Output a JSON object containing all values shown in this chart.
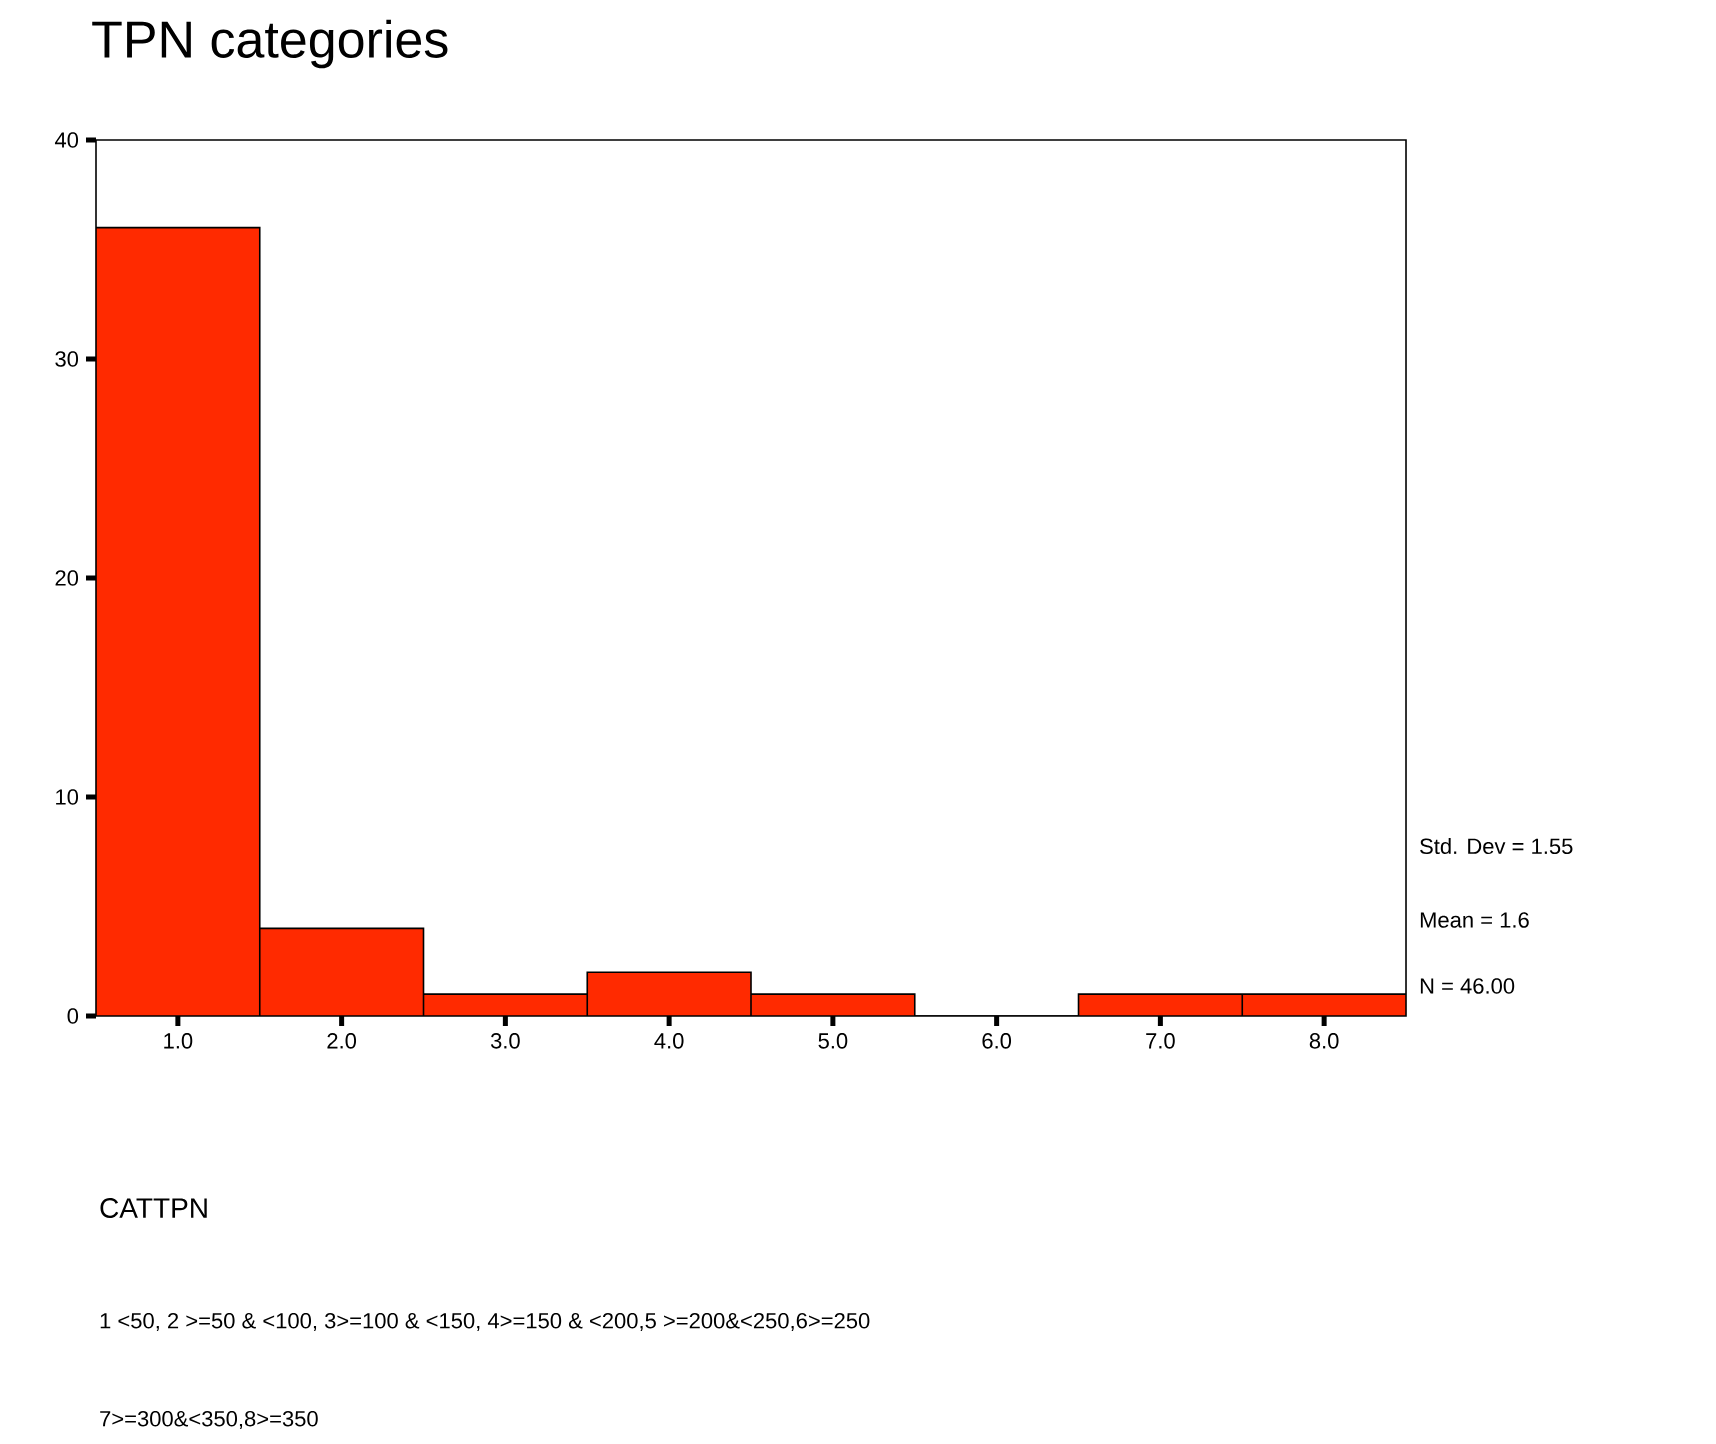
{
  "chart_data": {
    "type": "histogram",
    "title": "TPN categories",
    "bins": [
      0.5,
      1.5,
      2.5,
      3.5,
      4.5,
      5.5,
      6.5,
      7.5,
      8.5
    ],
    "values": [
      36,
      4,
      1,
      2,
      1,
      0,
      1,
      1
    ],
    "color": "#ff2a00",
    "xlim": [
      0.5,
      8.5
    ],
    "xticks": [
      {
        "value": 1,
        "label": "1.0"
      },
      {
        "value": 2,
        "label": "2.0"
      },
      {
        "value": 3,
        "label": "3.0"
      },
      {
        "value": 4,
        "label": "4.0"
      },
      {
        "value": 5,
        "label": "5.0"
      },
      {
        "value": 6,
        "label": "6.0"
      },
      {
        "value": 7,
        "label": "7.0"
      },
      {
        "value": 8,
        "label": "8.0"
      }
    ],
    "ylim": [
      0,
      40
    ],
    "yticks": [
      0,
      10,
      20,
      30,
      40
    ],
    "annotations": [
      "Std. Dev = 1.55",
      "Mean = 1.6",
      "N = 46.00",
      "CATTPN",
      "1 <50, 2 >=50 & <100, 3>=100 & <150, 4>=150 & <200,5 >=200&<250,6>=250",
      "7>=300&<350,8>=350"
    ]
  }
}
